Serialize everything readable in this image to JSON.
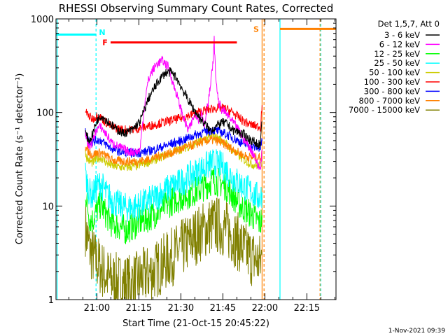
{
  "chart_data": {
    "type": "line",
    "title": "RHESSI Observing Summary Count Rates, Corrected",
    "xlabel": "Start Time (21-Oct-15 20:45:22)",
    "ylabel": "Corrected Count Rate (s⁻¹ detector⁻¹)",
    "yscale": "log",
    "ylim": [
      1,
      1000
    ],
    "xlim": [
      0,
      100
    ],
    "x_unit": "minutes since 20:45:22",
    "ytick_labels": [
      "1",
      "10",
      "100",
      "1000"
    ],
    "ytick_values": [
      1,
      10,
      100,
      1000
    ],
    "xtick_labels": [
      "21:00",
      "21:15",
      "21:30",
      "21:45",
      "22:00",
      "22:15"
    ],
    "xtick_values": [
      14.6,
      29.6,
      44.6,
      59.6,
      74.6,
      89.6
    ],
    "legend_header": "Det 1,5,7, Att 0",
    "legend_position": "outside-right",
    "footer_date": "1-Nov-2021 09:39",
    "annotations": [
      {
        "label": "N",
        "kind": "night",
        "color": "#00ffff",
        "bar": {
          "x0": 0,
          "x1": 14.3,
          "y": 680
        },
        "label_x": 16.5,
        "label_y": 720
      },
      {
        "label": "F",
        "kind": "flare",
        "color": "#ff0000",
        "bar": {
          "x0": 19.5,
          "x1": 64.6,
          "y": 560
        },
        "label_x": 17.5,
        "label_y": 560
      },
      {
        "label": "S",
        "kind": "saa",
        "color": "#ff8000",
        "bar": {
          "x0": 80,
          "x1": 100,
          "y": 780
        },
        "label_x": 71.5,
        "label_y": 780
      }
    ],
    "boundaries": [
      {
        "x": 0.4,
        "color": "#00ffff",
        "style": "solid"
      },
      {
        "x": 14.3,
        "color": "#00ffff",
        "style": "dashed"
      },
      {
        "x": 73.6,
        "color": "#ff8000",
        "style": "solid"
      },
      {
        "x": 74.3,
        "color": "#ff8000",
        "style": "dashed"
      },
      {
        "x": 80.0,
        "color": "#00ffff",
        "style": "solid"
      },
      {
        "x": 94.3,
        "color": "#ff8000",
        "style": "dashed"
      },
      {
        "x": 94.6,
        "color": "#00ffff",
        "style": "dashed"
      }
    ],
    "series": [
      {
        "name": "3 - 6 keV",
        "color": "#000000",
        "noise": 0.05,
        "points": [
          [
            10.5,
            62
          ],
          [
            11,
            55
          ],
          [
            12,
            50
          ],
          [
            13,
            58
          ],
          [
            14.6,
            82
          ],
          [
            16,
            93
          ],
          [
            17,
            88
          ],
          [
            19,
            78
          ],
          [
            21,
            68
          ],
          [
            24,
            60
          ],
          [
            27,
            64
          ],
          [
            30,
            80
          ],
          [
            33,
            140
          ],
          [
            35,
            180
          ],
          [
            37,
            225
          ],
          [
            39,
            265
          ],
          [
            41,
            270
          ],
          [
            43,
            235
          ],
          [
            45,
            180
          ],
          [
            47,
            140
          ],
          [
            49,
            110
          ],
          [
            51,
            90
          ],
          [
            53,
            76
          ],
          [
            55,
            64
          ],
          [
            57,
            70
          ],
          [
            59,
            78
          ],
          [
            61,
            76
          ],
          [
            63,
            65
          ],
          [
            65,
            62
          ],
          [
            67,
            58
          ],
          [
            69,
            52
          ],
          [
            72,
            46
          ],
          [
            73,
            45
          ],
          [
            73.6,
            80
          ]
        ]
      },
      {
        "name": "6 - 12 keV",
        "color": "#ff00ff",
        "noise": 0.05,
        "points": [
          [
            10.5,
            60
          ],
          [
            11,
            50
          ],
          [
            12,
            43
          ],
          [
            13,
            48
          ],
          [
            14.6,
            67
          ],
          [
            16,
            70
          ],
          [
            18,
            58
          ],
          [
            20,
            47
          ],
          [
            23,
            42
          ],
          [
            26,
            38
          ],
          [
            29,
            38
          ],
          [
            30,
            40
          ],
          [
            31,
            80
          ],
          [
            32,
            150
          ],
          [
            33,
            220
          ],
          [
            34,
            265
          ],
          [
            36,
            330
          ],
          [
            38,
            360
          ],
          [
            40,
            310
          ],
          [
            41,
            250
          ],
          [
            42,
            195
          ],
          [
            43,
            160
          ],
          [
            44,
            125
          ],
          [
            45,
            100
          ],
          [
            46,
            80
          ],
          [
            47,
            66
          ],
          [
            48,
            70
          ],
          [
            49,
            88
          ],
          [
            50,
            96
          ],
          [
            51,
            85
          ],
          [
            52,
            100
          ],
          [
            53,
            72
          ],
          [
            54,
            115
          ],
          [
            55,
            175
          ],
          [
            56,
            320
          ],
          [
            56.5,
            590
          ],
          [
            57,
            250
          ],
          [
            58,
            130
          ],
          [
            59,
            110
          ],
          [
            61,
            95
          ],
          [
            63,
            80
          ],
          [
            65,
            66
          ],
          [
            67,
            52
          ],
          [
            69,
            43
          ],
          [
            71,
            34
          ],
          [
            72,
            27
          ],
          [
            73,
            25
          ],
          [
            73.6,
            40
          ]
        ]
      },
      {
        "name": "12 - 25 keV",
        "color": "#00ff00",
        "noise": 0.16,
        "points": [
          [
            10.5,
            15
          ],
          [
            11,
            11
          ],
          [
            12,
            7.5
          ],
          [
            13,
            7
          ],
          [
            14.6,
            9
          ],
          [
            16,
            10.5
          ],
          [
            18,
            8
          ],
          [
            20,
            6.5
          ],
          [
            23,
            6
          ],
          [
            25,
            5.5
          ],
          [
            27,
            6
          ],
          [
            30,
            6.8
          ],
          [
            33,
            7.5
          ],
          [
            36,
            8.5
          ],
          [
            39,
            10
          ],
          [
            42,
            11.5
          ],
          [
            45,
            12.5
          ],
          [
            48,
            13.5
          ],
          [
            51,
            15
          ],
          [
            54,
            17
          ],
          [
            56,
            19
          ],
          [
            58,
            18
          ],
          [
            60,
            17
          ],
          [
            62,
            14.5
          ],
          [
            64,
            12
          ],
          [
            66,
            10
          ],
          [
            68,
            9
          ],
          [
            70,
            8
          ],
          [
            72,
            7
          ],
          [
            73,
            6.5
          ],
          [
            73.6,
            8
          ]
        ]
      },
      {
        "name": "25 - 50 keV",
        "color": "#00ffff",
        "noise": 0.16,
        "points": [
          [
            10.5,
            22
          ],
          [
            11,
            18
          ],
          [
            12,
            14
          ],
          [
            13,
            13
          ],
          [
            14.6,
            16
          ],
          [
            16,
            17.5
          ],
          [
            18,
            13.5
          ],
          [
            20,
            11.5
          ],
          [
            23,
            10
          ],
          [
            26,
            9.5
          ],
          [
            29,
            10
          ],
          [
            32,
            11
          ],
          [
            35,
            12
          ],
          [
            38,
            14
          ],
          [
            41,
            16
          ],
          [
            44,
            17.5
          ],
          [
            47,
            20
          ],
          [
            50,
            23
          ],
          [
            53,
            26
          ],
          [
            56,
            29
          ],
          [
            58,
            28
          ],
          [
            60,
            26
          ],
          [
            62,
            22
          ],
          [
            64,
            19
          ],
          [
            66,
            17
          ],
          [
            68,
            15.5
          ],
          [
            70,
            14
          ],
          [
            72,
            12.5
          ],
          [
            73,
            12
          ],
          [
            73.6,
            14
          ]
        ]
      },
      {
        "name": "50 - 100 keV",
        "color": "#cccc00",
        "noise": 0.05,
        "points": [
          [
            10.5,
            38
          ],
          [
            11,
            33
          ],
          [
            12,
            30
          ],
          [
            13,
            29
          ],
          [
            14.6,
            32
          ],
          [
            16,
            33
          ],
          [
            18,
            29
          ],
          [
            20,
            27
          ],
          [
            23,
            26
          ],
          [
            26,
            26
          ],
          [
            29,
            27
          ],
          [
            32,
            29
          ],
          [
            35,
            31
          ],
          [
            38,
            34
          ],
          [
            41,
            37
          ],
          [
            44,
            40
          ],
          [
            47,
            43
          ],
          [
            50,
            47
          ],
          [
            53,
            52
          ],
          [
            56,
            56
          ],
          [
            58,
            53
          ],
          [
            60,
            48
          ],
          [
            62,
            42
          ],
          [
            64,
            37
          ],
          [
            66,
            33
          ],
          [
            68,
            30
          ],
          [
            70,
            28
          ],
          [
            72,
            27
          ],
          [
            73,
            27
          ],
          [
            73.6,
            30
          ]
        ]
      },
      {
        "name": "100 - 300 keV",
        "color": "#ff0000",
        "noise": 0.05,
        "points": [
          [
            10.5,
            105
          ],
          [
            11,
            98
          ],
          [
            12,
            90
          ],
          [
            13,
            85
          ],
          [
            14.6,
            92
          ],
          [
            16,
            88
          ],
          [
            18,
            78
          ],
          [
            20,
            70
          ],
          [
            23,
            66
          ],
          [
            26,
            65
          ],
          [
            29,
            67
          ],
          [
            32,
            70
          ],
          [
            35,
            74
          ],
          [
            38,
            78
          ],
          [
            41,
            82
          ],
          [
            44,
            86
          ],
          [
            47,
            92
          ],
          [
            50,
            98
          ],
          [
            53,
            105
          ],
          [
            56,
            110
          ],
          [
            59,
            112
          ],
          [
            61,
            108
          ],
          [
            63,
            100
          ],
          [
            65,
            90
          ],
          [
            67,
            80
          ],
          [
            69,
            75
          ],
          [
            71,
            72
          ],
          [
            73,
            70
          ],
          [
            73.6,
            120
          ]
        ]
      },
      {
        "name": "300 - 800 keV",
        "color": "#0000ff",
        "noise": 0.05,
        "points": [
          [
            10.5,
            62
          ],
          [
            11,
            55
          ],
          [
            12,
            50
          ],
          [
            13,
            48
          ],
          [
            14.6,
            51
          ],
          [
            16,
            50
          ],
          [
            18,
            45
          ],
          [
            20,
            41
          ],
          [
            23,
            38
          ],
          [
            26,
            37
          ],
          [
            29,
            37
          ],
          [
            32,
            38
          ],
          [
            35,
            40
          ],
          [
            38,
            43
          ],
          [
            41,
            46
          ],
          [
            44,
            49
          ],
          [
            47,
            53
          ],
          [
            50,
            58
          ],
          [
            53,
            62
          ],
          [
            56,
            65
          ],
          [
            58,
            63
          ],
          [
            60,
            60
          ],
          [
            62,
            56
          ],
          [
            64,
            52
          ],
          [
            66,
            48
          ],
          [
            68,
            45
          ],
          [
            70,
            43
          ],
          [
            72,
            42
          ],
          [
            73,
            42
          ],
          [
            73.6,
            50
          ]
        ]
      },
      {
        "name": "800 - 7000 keV",
        "color": "#ff8000",
        "noise": 0.05,
        "points": [
          [
            10.5,
            45
          ],
          [
            11,
            40
          ],
          [
            12,
            37
          ],
          [
            13,
            35
          ],
          [
            14.6,
            37
          ],
          [
            16,
            37
          ],
          [
            18,
            34
          ],
          [
            20,
            31
          ],
          [
            23,
            30
          ],
          [
            26,
            30
          ],
          [
            29,
            30
          ],
          [
            32,
            31
          ],
          [
            35,
            33
          ],
          [
            38,
            35
          ],
          [
            41,
            37
          ],
          [
            44,
            40
          ],
          [
            47,
            43
          ],
          [
            50,
            46
          ],
          [
            53,
            49
          ],
          [
            56,
            51
          ],
          [
            58,
            49
          ],
          [
            60,
            46
          ],
          [
            62,
            42
          ],
          [
            64,
            39
          ],
          [
            66,
            36
          ],
          [
            68,
            34
          ],
          [
            70,
            33
          ],
          [
            72,
            33
          ],
          [
            73,
            33
          ],
          [
            73.6,
            38
          ]
        ]
      },
      {
        "name": "7000 - 15000 keV",
        "color": "#808000",
        "noise": 0.32,
        "points": [
          [
            10.5,
            6
          ],
          [
            11,
            4.8
          ],
          [
            12,
            3.5
          ],
          [
            13,
            3
          ],
          [
            14.6,
            2.5
          ],
          [
            16,
            2.2
          ],
          [
            18,
            1.8
          ],
          [
            20,
            1.6
          ],
          [
            23,
            1.5
          ],
          [
            26,
            1.5
          ],
          [
            29,
            1.6
          ],
          [
            32,
            1.8
          ],
          [
            35,
            2
          ],
          [
            38,
            2.4
          ],
          [
            41,
            2.8
          ],
          [
            44,
            3.3
          ],
          [
            47,
            4
          ],
          [
            50,
            4.8
          ],
          [
            53,
            5.6
          ],
          [
            56,
            6.3
          ],
          [
            58,
            6.2
          ],
          [
            60,
            5.8
          ],
          [
            62,
            5.2
          ],
          [
            64,
            4.5
          ],
          [
            66,
            3.8
          ],
          [
            68,
            3.2
          ],
          [
            70,
            2.8
          ],
          [
            72,
            2.6
          ],
          [
            73,
            2.5
          ],
          [
            73.6,
            3
          ]
        ]
      }
    ]
  }
}
